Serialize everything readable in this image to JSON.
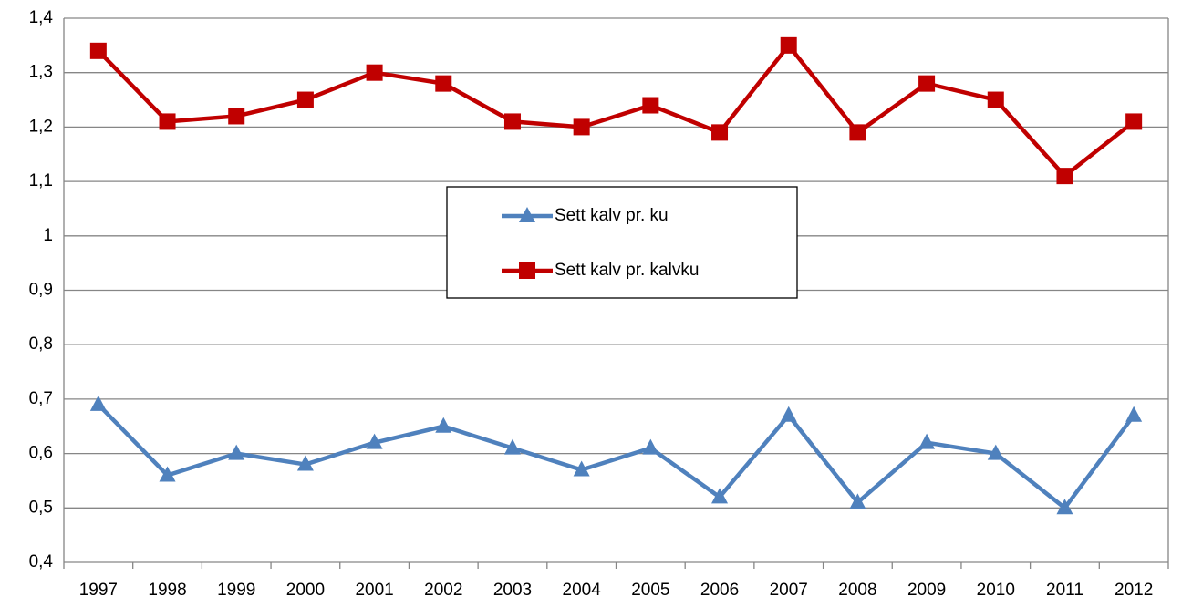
{
  "chart_data": {
    "type": "line",
    "categories": [
      "1997",
      "1998",
      "1999",
      "2000",
      "2001",
      "2002",
      "2003",
      "2004",
      "2005",
      "2006",
      "2007",
      "2008",
      "2009",
      "2010",
      "2011",
      "2012"
    ],
    "series": [
      {
        "name": "Sett kalv pr. ku",
        "color": "#4f81bd",
        "marker": "triangle",
        "values": [
          0.69,
          0.56,
          0.6,
          0.58,
          0.62,
          0.65,
          0.61,
          0.57,
          0.61,
          0.52,
          0.67,
          0.51,
          0.62,
          0.6,
          0.5,
          0.67
        ]
      },
      {
        "name": "Sett kalv pr. kalvku",
        "color": "#c00000",
        "marker": "square",
        "values": [
          1.34,
          1.21,
          1.22,
          1.25,
          1.3,
          1.28,
          1.21,
          1.2,
          1.24,
          1.19,
          1.35,
          1.19,
          1.28,
          1.25,
          1.11,
          1.21
        ]
      }
    ],
    "ylim": [
      0.4,
      1.4
    ],
    "yticks": [
      {
        "value": 0.4,
        "label": "0,4"
      },
      {
        "value": 0.5,
        "label": "0,5"
      },
      {
        "value": 0.6,
        "label": "0,6"
      },
      {
        "value": 0.7,
        "label": "0,7"
      },
      {
        "value": 0.8,
        "label": "0,8"
      },
      {
        "value": 0.9,
        "label": "0,9"
      },
      1,
      {
        "value": 1.1,
        "label": "1,1"
      },
      {
        "value": 1.2,
        "label": "1,2"
      },
      {
        "value": 1.3,
        "label": "1,3"
      },
      {
        "value": 1.4,
        "label": "1,4"
      }
    ],
    "grid": true
  }
}
